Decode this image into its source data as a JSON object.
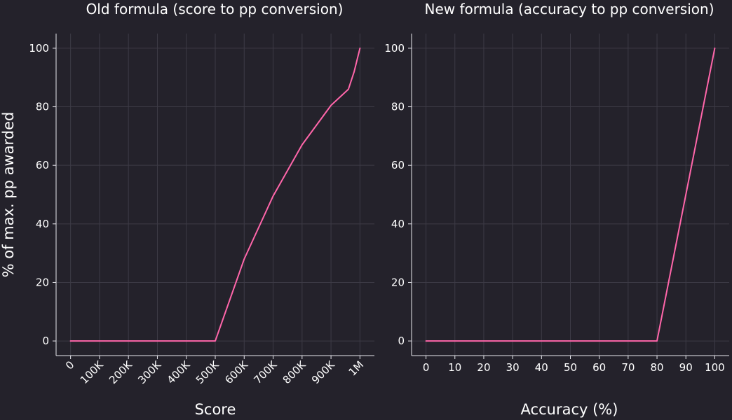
{
  "figure": {
    "background": "#24222b",
    "grid_color": "#3d3b46",
    "spine_color": "#e8e8ee",
    "text_color": "#ffffff"
  },
  "chart_data": [
    {
      "type": "line",
      "title": "Old formula (score to pp conversion)",
      "xlabel": "Score",
      "ylabel": "% of max. pp awarded",
      "xlim": [
        -50000,
        1050000
      ],
      "ylim": [
        -5,
        105
      ],
      "grid": true,
      "xticks": [
        {
          "value": 0,
          "label": "0"
        },
        {
          "value": 100000,
          "label": "100K"
        },
        {
          "value": 200000,
          "label": "200K"
        },
        {
          "value": 300000,
          "label": "300K"
        },
        {
          "value": 400000,
          "label": "400K"
        },
        {
          "value": 500000,
          "label": "500K"
        },
        {
          "value": 600000,
          "label": "600K"
        },
        {
          "value": 700000,
          "label": "700K"
        },
        {
          "value": 800000,
          "label": "800K"
        },
        {
          "value": 900000,
          "label": "900K"
        },
        {
          "value": 1000000,
          "label": "1M"
        }
      ],
      "xtick_rotation": -45,
      "yticks": [
        {
          "value": 0,
          "label": "0"
        },
        {
          "value": 20,
          "label": "20"
        },
        {
          "value": 40,
          "label": "40"
        },
        {
          "value": 60,
          "label": "60"
        },
        {
          "value": 80,
          "label": "80"
        },
        {
          "value": 100,
          "label": "100"
        }
      ],
      "series": [
        {
          "color": "#ff66aa",
          "x": [
            0,
            500000,
            600000,
            700000,
            800000,
            900000,
            960000,
            980000,
            1000000
          ],
          "y": [
            0,
            0,
            28,
            49.5,
            67,
            80.5,
            86,
            92,
            100
          ]
        }
      ]
    },
    {
      "type": "line",
      "title": "New formula (accuracy to pp conversion)",
      "xlabel": "Accuracy (%)",
      "ylabel": "",
      "xlim": [
        -5,
        105
      ],
      "ylim": [
        -5,
        105
      ],
      "grid": true,
      "xticks": [
        {
          "value": 0,
          "label": "0"
        },
        {
          "value": 10,
          "label": "10"
        },
        {
          "value": 20,
          "label": "20"
        },
        {
          "value": 30,
          "label": "30"
        },
        {
          "value": 40,
          "label": "40"
        },
        {
          "value": 50,
          "label": "50"
        },
        {
          "value": 60,
          "label": "60"
        },
        {
          "value": 70,
          "label": "70"
        },
        {
          "value": 80,
          "label": "80"
        },
        {
          "value": 90,
          "label": "90"
        },
        {
          "value": 100,
          "label": "100"
        }
      ],
      "xtick_rotation": 0,
      "yticks": [
        {
          "value": 0,
          "label": "0"
        },
        {
          "value": 20,
          "label": "20"
        },
        {
          "value": 40,
          "label": "40"
        },
        {
          "value": 60,
          "label": "60"
        },
        {
          "value": 80,
          "label": "80"
        },
        {
          "value": 100,
          "label": "100"
        }
      ],
      "series": [
        {
          "color": "#ff66aa",
          "x": [
            0,
            80,
            100
          ],
          "y": [
            0,
            0,
            100
          ]
        }
      ]
    }
  ]
}
